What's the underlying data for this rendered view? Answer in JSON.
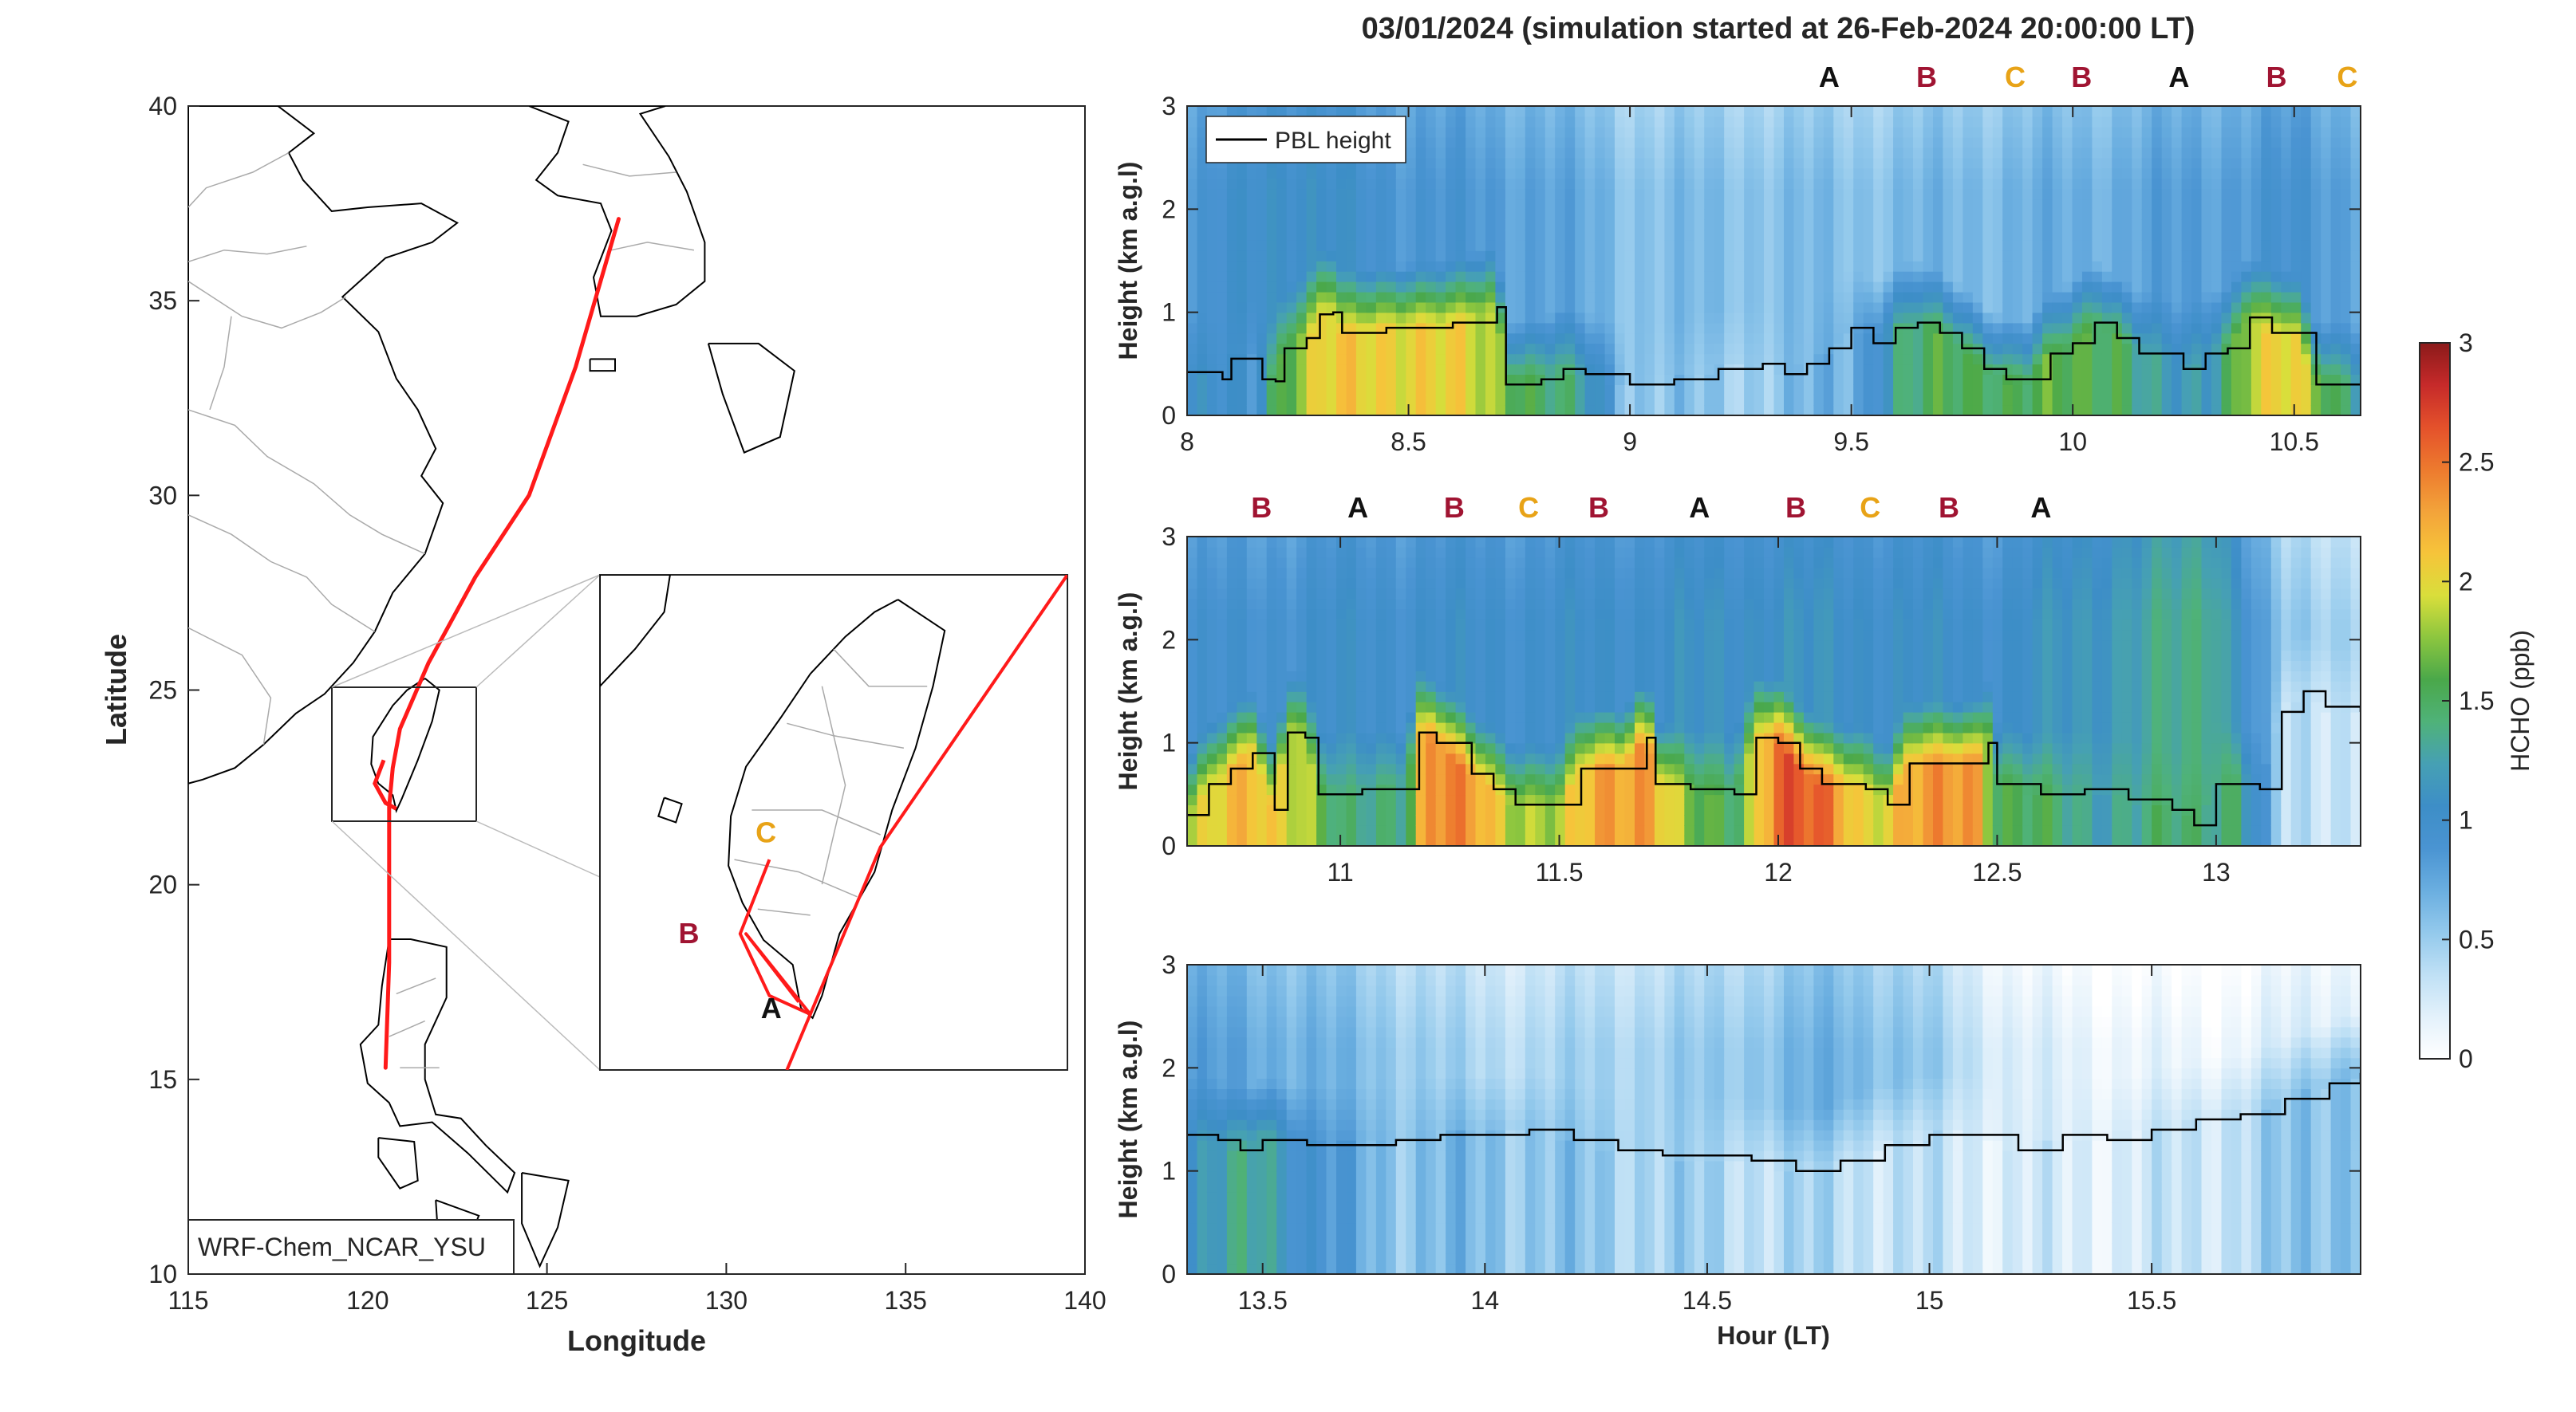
{
  "title": "03/01/2024 (simulation started at 26-Feb-2024 20:00:00 LT)",
  "colors": {
    "track": "#ff1a1a",
    "site_A": "#111111",
    "site_B": "#a01432",
    "site_C": "#e8a317",
    "pbl_line": "#000000"
  },
  "colormap": [
    "#ffffff",
    "#e3f1fb",
    "#bfe0f5",
    "#93c9ec",
    "#6aaee0",
    "#4a94d2",
    "#3d8ec7",
    "#46a0b4",
    "#4fb279",
    "#4aa84a",
    "#8cc63f",
    "#d9de3b",
    "#f6c43a",
    "#f3a33a",
    "#ed7a2e",
    "#e4512b",
    "#c62a2a",
    "#8b1a1a"
  ],
  "chart_data": [
    {
      "type": "map",
      "xlabel": "Longitude",
      "ylabel": "Latitude",
      "xlim": [
        115,
        140
      ],
      "ylim": [
        10,
        40
      ],
      "xticks": [
        "115",
        "120",
        "125",
        "130",
        "135",
        "140"
      ],
      "yticks": [
        "10",
        "15",
        "20",
        "25",
        "30",
        "35",
        "40"
      ],
      "model_label": "WRF-Chem_NCAR_YSU",
      "track": [
        [
          127.0,
          37.1
        ],
        [
          125.8,
          33.3
        ],
        [
          124.5,
          30.0
        ],
        [
          123.0,
          27.9
        ],
        [
          121.7,
          25.7
        ],
        [
          120.9,
          24.0
        ],
        [
          120.7,
          23.0
        ],
        [
          120.6,
          22.0
        ],
        [
          120.6,
          18.0
        ],
        [
          120.5,
          15.3
        ]
      ],
      "inset_xlim": [
        119.0,
        123.0
      ],
      "inset_ylim": [
        21.5,
        25.5
      ],
      "inset_track_outer": [
        [
          123.0,
          25.5
        ],
        [
          121.4,
          23.3
        ],
        [
          120.8,
          21.95
        ],
        [
          120.6,
          21.5
        ]
      ],
      "inset_track_inner": [
        [
          120.45,
          23.2
        ],
        [
          120.2,
          22.6
        ],
        [
          120.45,
          22.1
        ],
        [
          120.8,
          21.95
        ],
        [
          120.25,
          22.6
        ],
        [
          120.7,
          22.05
        ]
      ],
      "sites": [
        {
          "label": "A",
          "lon": 120.65,
          "lat": 21.97
        },
        {
          "label": "B",
          "lon": 120.0,
          "lat": 22.6
        },
        {
          "label": "C",
          "lon": 120.4,
          "lat": 23.25
        }
      ]
    },
    {
      "type": "heatmap",
      "panel": 1,
      "xlim": [
        8.0,
        10.65
      ],
      "ylim": [
        0,
        3
      ],
      "xticks": [
        "8",
        "8.5",
        "9",
        "9.5",
        "10",
        "10.5"
      ],
      "yticks": [
        "0",
        "1",
        "2",
        "3"
      ],
      "ylabel": "Height (km a.g.l)",
      "legend": "PBL height",
      "site_labels": [
        {
          "label": "A",
          "hour": 9.45
        },
        {
          "label": "B",
          "hour": 9.67
        },
        {
          "label": "C",
          "hour": 9.87
        },
        {
          "label": "B",
          "hour": 10.02
        },
        {
          "label": "A",
          "hour": 10.24
        },
        {
          "label": "B",
          "hour": 10.46
        },
        {
          "label": "C",
          "hour": 10.62
        }
      ],
      "pbl": [
        [
          8.0,
          0.42
        ],
        [
          8.05,
          0.42
        ],
        [
          8.08,
          0.35
        ],
        [
          8.1,
          0.55
        ],
        [
          8.15,
          0.55
        ],
        [
          8.17,
          0.35
        ],
        [
          8.2,
          0.33
        ],
        [
          8.22,
          0.65
        ],
        [
          8.27,
          0.75
        ],
        [
          8.3,
          0.98
        ],
        [
          8.33,
          1.0
        ],
        [
          8.35,
          0.8
        ],
        [
          8.45,
          0.85
        ],
        [
          8.6,
          0.9
        ],
        [
          8.7,
          1.05
        ],
        [
          8.72,
          0.3
        ],
        [
          8.8,
          0.35
        ],
        [
          8.85,
          0.45
        ],
        [
          8.9,
          0.4
        ],
        [
          9.0,
          0.3
        ],
        [
          9.1,
          0.35
        ],
        [
          9.2,
          0.45
        ],
        [
          9.3,
          0.5
        ],
        [
          9.35,
          0.4
        ],
        [
          9.4,
          0.5
        ],
        [
          9.45,
          0.65
        ],
        [
          9.5,
          0.85
        ],
        [
          9.55,
          0.7
        ],
        [
          9.6,
          0.85
        ],
        [
          9.65,
          0.9
        ],
        [
          9.7,
          0.8
        ],
        [
          9.75,
          0.65
        ],
        [
          9.8,
          0.45
        ],
        [
          9.85,
          0.35
        ],
        [
          9.9,
          0.35
        ],
        [
          9.95,
          0.6
        ],
        [
          10.0,
          0.7
        ],
        [
          10.05,
          0.9
        ],
        [
          10.1,
          0.75
        ],
        [
          10.15,
          0.6
        ],
        [
          10.2,
          0.6
        ],
        [
          10.25,
          0.45
        ],
        [
          10.3,
          0.6
        ],
        [
          10.35,
          0.65
        ],
        [
          10.4,
          0.95
        ],
        [
          10.45,
          0.8
        ],
        [
          10.5,
          0.8
        ],
        [
          10.55,
          0.3
        ],
        [
          10.65,
          0.3
        ]
      ],
      "hcho_profile": [
        [
          8.0,
          1.0
        ],
        [
          8.15,
          0.9
        ],
        [
          8.2,
          1.6
        ],
        [
          8.3,
          2.0
        ],
        [
          8.5,
          2.1
        ],
        [
          8.65,
          1.9
        ],
        [
          8.7,
          1.8
        ],
        [
          8.8,
          1.5
        ],
        [
          8.9,
          1.2
        ],
        [
          9.0,
          0.6
        ],
        [
          9.2,
          0.5
        ],
        [
          9.4,
          0.6
        ],
        [
          9.5,
          0.7
        ],
        [
          9.6,
          1.3
        ],
        [
          9.7,
          1.5
        ],
        [
          9.8,
          1.6
        ],
        [
          9.9,
          1.5
        ],
        [
          10.0,
          1.6
        ],
        [
          10.1,
          1.6
        ],
        [
          10.2,
          1.1
        ],
        [
          10.3,
          1.2
        ],
        [
          10.4,
          1.9
        ],
        [
          10.5,
          2.0
        ],
        [
          10.65,
          1.3
        ]
      ],
      "hcho_top": [
        [
          8.0,
          0.8
        ],
        [
          8.2,
          1.1
        ],
        [
          8.5,
          0.9
        ],
        [
          8.8,
          0.8
        ],
        [
          9.0,
          0.6
        ],
        [
          9.5,
          0.6
        ],
        [
          10.0,
          0.7
        ],
        [
          10.5,
          0.9
        ],
        [
          10.65,
          0.8
        ]
      ]
    },
    {
      "type": "heatmap",
      "panel": 2,
      "xlim": [
        10.65,
        13.33
      ],
      "ylim": [
        0,
        3
      ],
      "xticks": [
        "11",
        "11.5",
        "12",
        "12.5",
        "13"
      ],
      "yticks": [
        "0",
        "1",
        "2",
        "3"
      ],
      "ylabel": "Height (km a.g.l)",
      "site_labels": [
        {
          "label": "B",
          "hour": 10.82
        },
        {
          "label": "A",
          "hour": 11.04
        },
        {
          "label": "B",
          "hour": 11.26
        },
        {
          "label": "C",
          "hour": 11.43
        },
        {
          "label": "B",
          "hour": 11.59
        },
        {
          "label": "A",
          "hour": 11.82
        },
        {
          "label": "B",
          "hour": 12.04
        },
        {
          "label": "C",
          "hour": 12.21
        },
        {
          "label": "B",
          "hour": 12.39
        },
        {
          "label": "A",
          "hour": 12.6
        }
      ],
      "pbl": [
        [
          10.65,
          0.3
        ],
        [
          10.7,
          0.6
        ],
        [
          10.75,
          0.75
        ],
        [
          10.8,
          0.9
        ],
        [
          10.85,
          0.35
        ],
        [
          10.88,
          1.1
        ],
        [
          10.92,
          1.05
        ],
        [
          10.95,
          0.5
        ],
        [
          11.05,
          0.55
        ],
        [
          11.15,
          0.55
        ],
        [
          11.18,
          1.1
        ],
        [
          11.22,
          1.0
        ],
        [
          11.3,
          0.7
        ],
        [
          11.35,
          0.55
        ],
        [
          11.4,
          0.4
        ],
        [
          11.5,
          0.4
        ],
        [
          11.55,
          0.75
        ],
        [
          11.65,
          0.75
        ],
        [
          11.7,
          1.05
        ],
        [
          11.72,
          0.6
        ],
        [
          11.8,
          0.55
        ],
        [
          11.9,
          0.5
        ],
        [
          11.95,
          1.05
        ],
        [
          12.0,
          1.0
        ],
        [
          12.05,
          0.75
        ],
        [
          12.1,
          0.6
        ],
        [
          12.2,
          0.55
        ],
        [
          12.25,
          0.4
        ],
        [
          12.3,
          0.8
        ],
        [
          12.45,
          0.8
        ],
        [
          12.48,
          1.0
        ],
        [
          12.5,
          0.6
        ],
        [
          12.6,
          0.5
        ],
        [
          12.7,
          0.55
        ],
        [
          12.8,
          0.45
        ],
        [
          12.9,
          0.35
        ],
        [
          12.95,
          0.2
        ],
        [
          13.0,
          0.6
        ],
        [
          13.1,
          0.55
        ],
        [
          13.15,
          1.3
        ],
        [
          13.2,
          1.5
        ],
        [
          13.25,
          1.35
        ],
        [
          13.33,
          1.3
        ]
      ],
      "hcho_profile": [
        [
          10.65,
          1.8
        ],
        [
          10.8,
          2.2
        ],
        [
          10.9,
          2.0
        ],
        [
          11.0,
          1.3
        ],
        [
          11.15,
          1.5
        ],
        [
          11.2,
          2.4
        ],
        [
          11.3,
          2.3
        ],
        [
          11.4,
          1.9
        ],
        [
          11.5,
          1.8
        ],
        [
          11.6,
          2.3
        ],
        [
          11.7,
          2.4
        ],
        [
          11.8,
          1.6
        ],
        [
          11.9,
          1.5
        ],
        [
          12.0,
          2.6
        ],
        [
          12.1,
          2.5
        ],
        [
          12.2,
          2.0
        ],
        [
          12.3,
          2.2
        ],
        [
          12.45,
          2.4
        ],
        [
          12.5,
          1.6
        ],
        [
          12.7,
          1.3
        ],
        [
          12.9,
          1.4
        ],
        [
          13.05,
          1.5
        ],
        [
          13.15,
          0.3
        ],
        [
          13.33,
          0.4
        ]
      ],
      "hcho_top": [
        [
          10.65,
          0.9
        ],
        [
          11.0,
          1.0
        ],
        [
          11.5,
          1.0
        ],
        [
          12.0,
          1.1
        ],
        [
          12.5,
          1.0
        ],
        [
          13.0,
          1.4
        ],
        [
          13.15,
          0.5
        ],
        [
          13.33,
          0.5
        ]
      ]
    },
    {
      "type": "heatmap",
      "panel": 3,
      "xlim": [
        13.33,
        15.97
      ],
      "ylim": [
        0,
        3
      ],
      "xticks": [
        "13.5",
        "14",
        "14.5",
        "15",
        "15.5"
      ],
      "yticks": [
        "0",
        "1",
        "2",
        "3"
      ],
      "ylabel": "Height (km a.g.l)",
      "xlabel": "Hour (LT)",
      "pbl": [
        [
          13.33,
          1.35
        ],
        [
          13.4,
          1.3
        ],
        [
          13.45,
          1.2
        ],
        [
          13.5,
          1.3
        ],
        [
          13.6,
          1.25
        ],
        [
          13.7,
          1.25
        ],
        [
          13.8,
          1.3
        ],
        [
          13.9,
          1.35
        ],
        [
          14.0,
          1.35
        ],
        [
          14.1,
          1.4
        ],
        [
          14.2,
          1.3
        ],
        [
          14.3,
          1.2
        ],
        [
          14.4,
          1.15
        ],
        [
          14.5,
          1.15
        ],
        [
          14.6,
          1.1
        ],
        [
          14.7,
          1.0
        ],
        [
          14.75,
          1.0
        ],
        [
          14.8,
          1.1
        ],
        [
          14.9,
          1.25
        ],
        [
          15.0,
          1.35
        ],
        [
          15.1,
          1.35
        ],
        [
          15.2,
          1.2
        ],
        [
          15.3,
          1.35
        ],
        [
          15.4,
          1.3
        ],
        [
          15.5,
          1.4
        ],
        [
          15.6,
          1.5
        ],
        [
          15.7,
          1.55
        ],
        [
          15.8,
          1.7
        ],
        [
          15.9,
          1.85
        ],
        [
          15.97,
          1.95
        ]
      ],
      "hcho_profile": [
        [
          13.33,
          1.0
        ],
        [
          13.5,
          1.4
        ],
        [
          13.6,
          0.9
        ],
        [
          13.8,
          0.6
        ],
        [
          14.0,
          0.6
        ],
        [
          14.3,
          0.5
        ],
        [
          14.6,
          0.4
        ],
        [
          14.8,
          0.4
        ],
        [
          15.0,
          0.3
        ],
        [
          15.3,
          0.2
        ],
        [
          15.6,
          0.3
        ],
        [
          15.8,
          0.5
        ],
        [
          15.97,
          0.7
        ]
      ],
      "hcho_top": [
        [
          13.33,
          0.8
        ],
        [
          13.6,
          0.7
        ],
        [
          14.0,
          0.4
        ],
        [
          14.5,
          0.5
        ],
        [
          14.8,
          0.7
        ],
        [
          15.0,
          0.5
        ],
        [
          15.2,
          0.2
        ],
        [
          15.6,
          0.1
        ],
        [
          15.97,
          0.3
        ]
      ]
    },
    {
      "type": "colorbar",
      "label": "HCHO (ppb)",
      "ylim": [
        0,
        3
      ],
      "yticks": [
        "0",
        "0.5",
        "1",
        "1.5",
        "2",
        "2.5",
        "3"
      ]
    }
  ]
}
